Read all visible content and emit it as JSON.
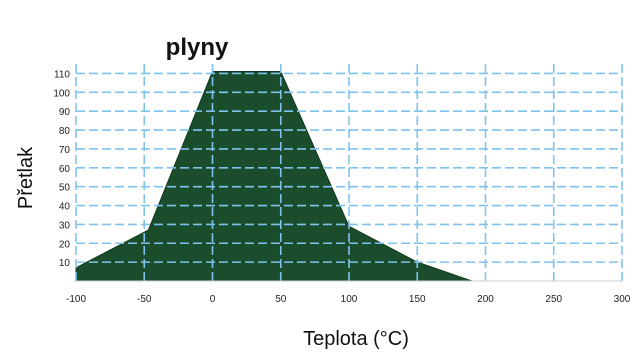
{
  "chart_data": {
    "type": "area",
    "title": "plyny",
    "xlabel": "Teplota (°C)",
    "ylabel": "Přetlak",
    "xlim": [
      -100,
      300
    ],
    "ylim": [
      0,
      115
    ],
    "x_ticks": [
      "-100",
      "-50",
      "0",
      "50",
      "100",
      "150",
      "200",
      "250",
      "300"
    ],
    "y_ticks": [
      "10",
      "20",
      "30",
      "40",
      "50",
      "60",
      "70",
      "80",
      "90",
      "100",
      "110"
    ],
    "grid": true,
    "series": [
      {
        "x": [
          -100,
          -47,
          0,
          50,
          100,
          150,
          190
        ],
        "y": [
          7,
          27,
          111,
          111,
          29,
          10,
          0
        ],
        "color": "#1b4d2c"
      }
    ],
    "grid_color": "#7ec3ee"
  }
}
